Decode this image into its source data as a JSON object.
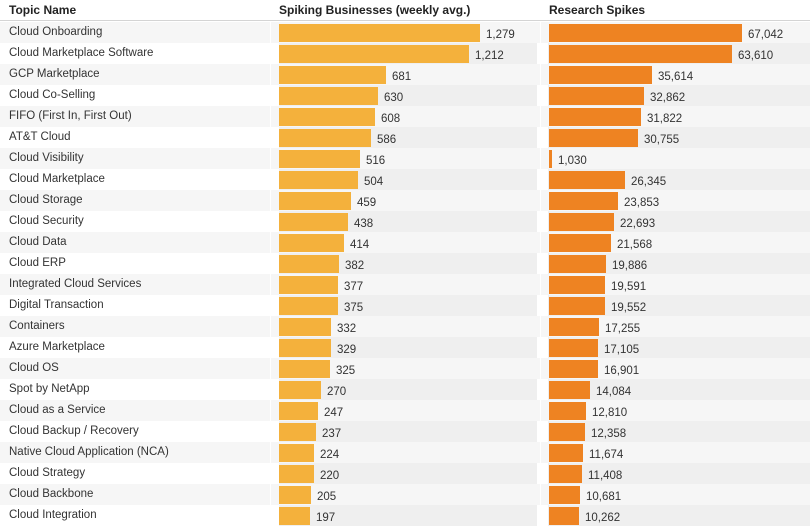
{
  "headers": {
    "topic": "Topic Name",
    "spiking": "Spiking Businesses (weekly avg.)",
    "research": "Research Spikes"
  },
  "colors": {
    "spiking_bar": "#f4b13c",
    "research_bar": "#ee8322"
  },
  "chart_data": {
    "type": "bar",
    "categories": [
      "Cloud Onboarding",
      "Cloud Marketplace Software",
      "GCP Marketplace",
      "Cloud Co-Selling",
      "FIFO (First In, First Out)",
      "AT&T Cloud",
      "Cloud Visibility",
      "Cloud Marketplace",
      "Cloud Storage",
      "Cloud Security",
      "Cloud Data",
      "Cloud ERP",
      "Integrated Cloud Services",
      "Digital Transaction",
      "Containers",
      "Azure Marketplace",
      "Cloud OS",
      "Spot by NetApp",
      "Cloud as a Service",
      "Cloud Backup / Recovery",
      "Native Cloud Application (NCA)",
      "Cloud Strategy",
      "Cloud Backbone",
      "Cloud Integration"
    ],
    "series": [
      {
        "name": "Spiking Businesses (weekly avg.)",
        "values": [
          1279,
          1212,
          681,
          630,
          608,
          586,
          516,
          504,
          459,
          438,
          414,
          382,
          377,
          375,
          332,
          329,
          325,
          270,
          247,
          237,
          224,
          220,
          205,
          197
        ],
        "labels": [
          "1,279",
          "1,212",
          "681",
          "630",
          "608",
          "586",
          "516",
          "504",
          "459",
          "438",
          "414",
          "382",
          "377",
          "375",
          "332",
          "329",
          "325",
          "270",
          "247",
          "237",
          "224",
          "220",
          "205",
          "197"
        ]
      },
      {
        "name": "Research Spikes",
        "values": [
          67042,
          63610,
          35614,
          32862,
          31822,
          30755,
          1030,
          26345,
          23853,
          22693,
          21568,
          19886,
          19591,
          19552,
          17255,
          17105,
          16901,
          14084,
          12810,
          12358,
          11674,
          11408,
          10681,
          10262
        ],
        "labels": [
          "67,042",
          "63,610",
          "35,614",
          "32,862",
          "31,822",
          "30,755",
          "1,030",
          "26,345",
          "23,853",
          "22,693",
          "21,568",
          "19,886",
          "19,591",
          "19,552",
          "17,255",
          "17,105",
          "16,901",
          "14,084",
          "12,810",
          "12,358",
          "11,674",
          "11,408",
          "10,681",
          "10,262"
        ]
      }
    ],
    "xlabel": "",
    "ylabel": ""
  }
}
